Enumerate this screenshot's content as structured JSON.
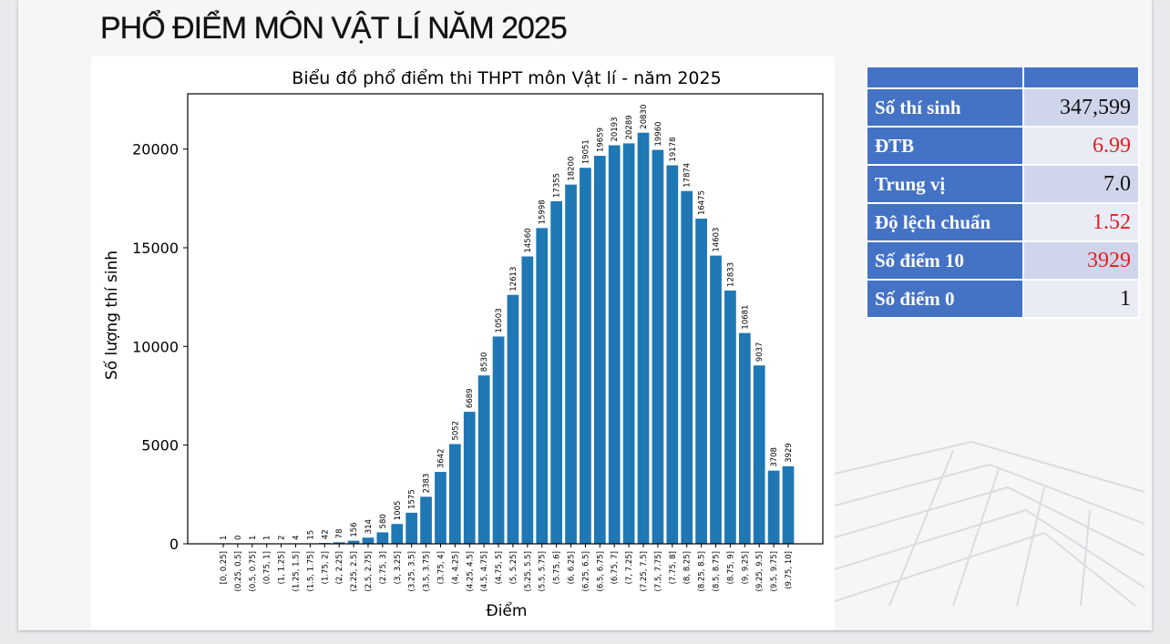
{
  "page_title": "PHỔ ĐIỂM MÔN VẬT LÍ NĂM 2025",
  "colors": {
    "bar": "#1f77b4",
    "table_header": "#4472c4",
    "highlight": "#e02020"
  },
  "stats": {
    "rows": [
      {
        "label": "Số thí sinh",
        "value": "347,599",
        "highlight": false
      },
      {
        "label": "ĐTB",
        "value": "6.99",
        "highlight": true
      },
      {
        "label": "Trung vị",
        "value": "7.0",
        "highlight": false
      },
      {
        "label": "Độ lệch chuẩn",
        "value": "1.52",
        "highlight": true
      },
      {
        "label": "Số điểm 10",
        "value": "3929",
        "highlight": true
      },
      {
        "label": "Số điểm 0",
        "value": "1",
        "highlight": false
      }
    ]
  },
  "chart_data": {
    "type": "bar",
    "title": "Biểu đồ phổ điểm thi THPT môn Vật lí - năm 2025",
    "xlabel": "Điểm",
    "ylabel": "Số lượng thí sinh",
    "ylim": [
      0,
      22800
    ],
    "yticks": [
      0,
      5000,
      10000,
      15000,
      20000
    ],
    "grid": false,
    "categories": [
      "[0, 0.25]",
      "(0.25, 0.5]",
      "(0.5, 0.75]",
      "(0.75, 1]",
      "(1, 1.25]",
      "(1.25, 1.5]",
      "(1.5, 1.75]",
      "(1.75, 2]",
      "(2, 2.25]",
      "(2.25, 2.5]",
      "(2.5, 2.75]",
      "(2.75, 3]",
      "(3, 3.25]",
      "(3.25, 3.5]",
      "(3.5, 3.75]",
      "(3.75, 4]",
      "(4, 4.25]",
      "(4.25, 4.5]",
      "(4.5, 4.75]",
      "(4.75, 5]",
      "(5, 5.25]",
      "(5.25, 5.5]",
      "(5.5, 5.75]",
      "(5.75, 6]",
      "(6, 6.25]",
      "(6.25, 6.5]",
      "(6.5, 6.75]",
      "(6.75, 7]",
      "(7, 7.25]",
      "(7.25, 7.5]",
      "(7.5, 7.75]",
      "(7.75, 8]",
      "(8, 8.25]",
      "(8.25, 8.5]",
      "(8.5, 8.75]",
      "(8.75, 9]",
      "(9, 9.25]",
      "(9.25, 9.5]",
      "(9.5, 9.75]",
      "(9.75, 10]"
    ],
    "values": [
      1,
      0,
      1,
      1,
      2,
      4,
      15,
      42,
      78,
      156,
      314,
      580,
      1005,
      1575,
      2383,
      3642,
      5052,
      6689,
      8530,
      10503,
      12613,
      14560,
      15998,
      17355,
      18200,
      19051,
      19659,
      20193,
      20289,
      20830,
      19960,
      19178,
      17874,
      16475,
      14603,
      12833,
      10681,
      9037,
      3708,
      3929
    ]
  }
}
